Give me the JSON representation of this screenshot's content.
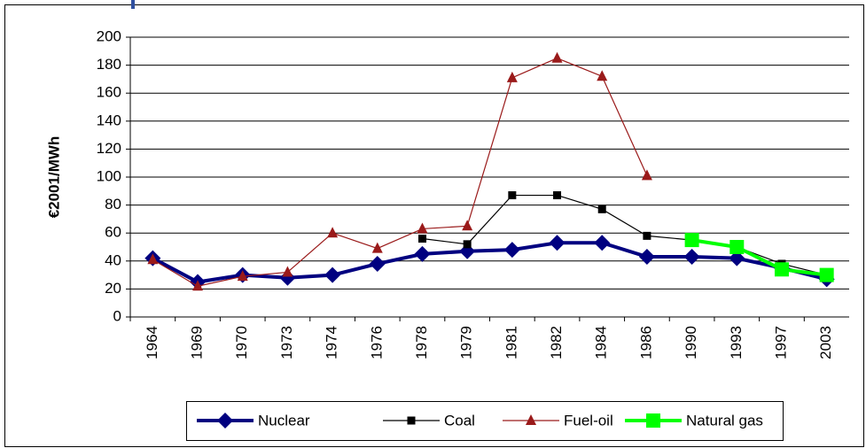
{
  "chart_data": {
    "type": "line",
    "y_label": "€2001/MWh",
    "categories": [
      "1964",
      "1969",
      "1970",
      "1973",
      "1974",
      "1976",
      "1978",
      "1979",
      "1981",
      "1982",
      "1984",
      "1986",
      "1990",
      "1993",
      "1997",
      "2003"
    ],
    "series": [
      {
        "name": "Nuclear",
        "color": "#000080",
        "marker": "diamond",
        "values": [
          42,
          25,
          30,
          28,
          30,
          38,
          45,
          47,
          48,
          53,
          53,
          43,
          43,
          42,
          35,
          27
        ]
      },
      {
        "name": "Coal",
        "color": "#000000",
        "marker": "square",
        "values": [
          null,
          null,
          null,
          null,
          null,
          null,
          56,
          52,
          87,
          87,
          77,
          58,
          55,
          50,
          38,
          30
        ]
      },
      {
        "name": "Fuel-oil",
        "color": "#9a1a1a",
        "marker": "triangle",
        "values": [
          41,
          22,
          29,
          32,
          60,
          49,
          63,
          65,
          171,
          185,
          172,
          101,
          null,
          null,
          null,
          null
        ]
      },
      {
        "name": "Natural gas",
        "color": "#00ff00",
        "marker": "bigsquare",
        "values": [
          null,
          null,
          null,
          null,
          null,
          null,
          null,
          null,
          null,
          null,
          null,
          null,
          55,
          50,
          34,
          30
        ]
      }
    ],
    "ylim": [
      0,
      200
    ],
    "yticks": [
      0,
      20,
      40,
      60,
      80,
      100,
      120,
      140,
      160,
      180,
      200
    ],
    "grid": true,
    "legend": "bottom"
  }
}
